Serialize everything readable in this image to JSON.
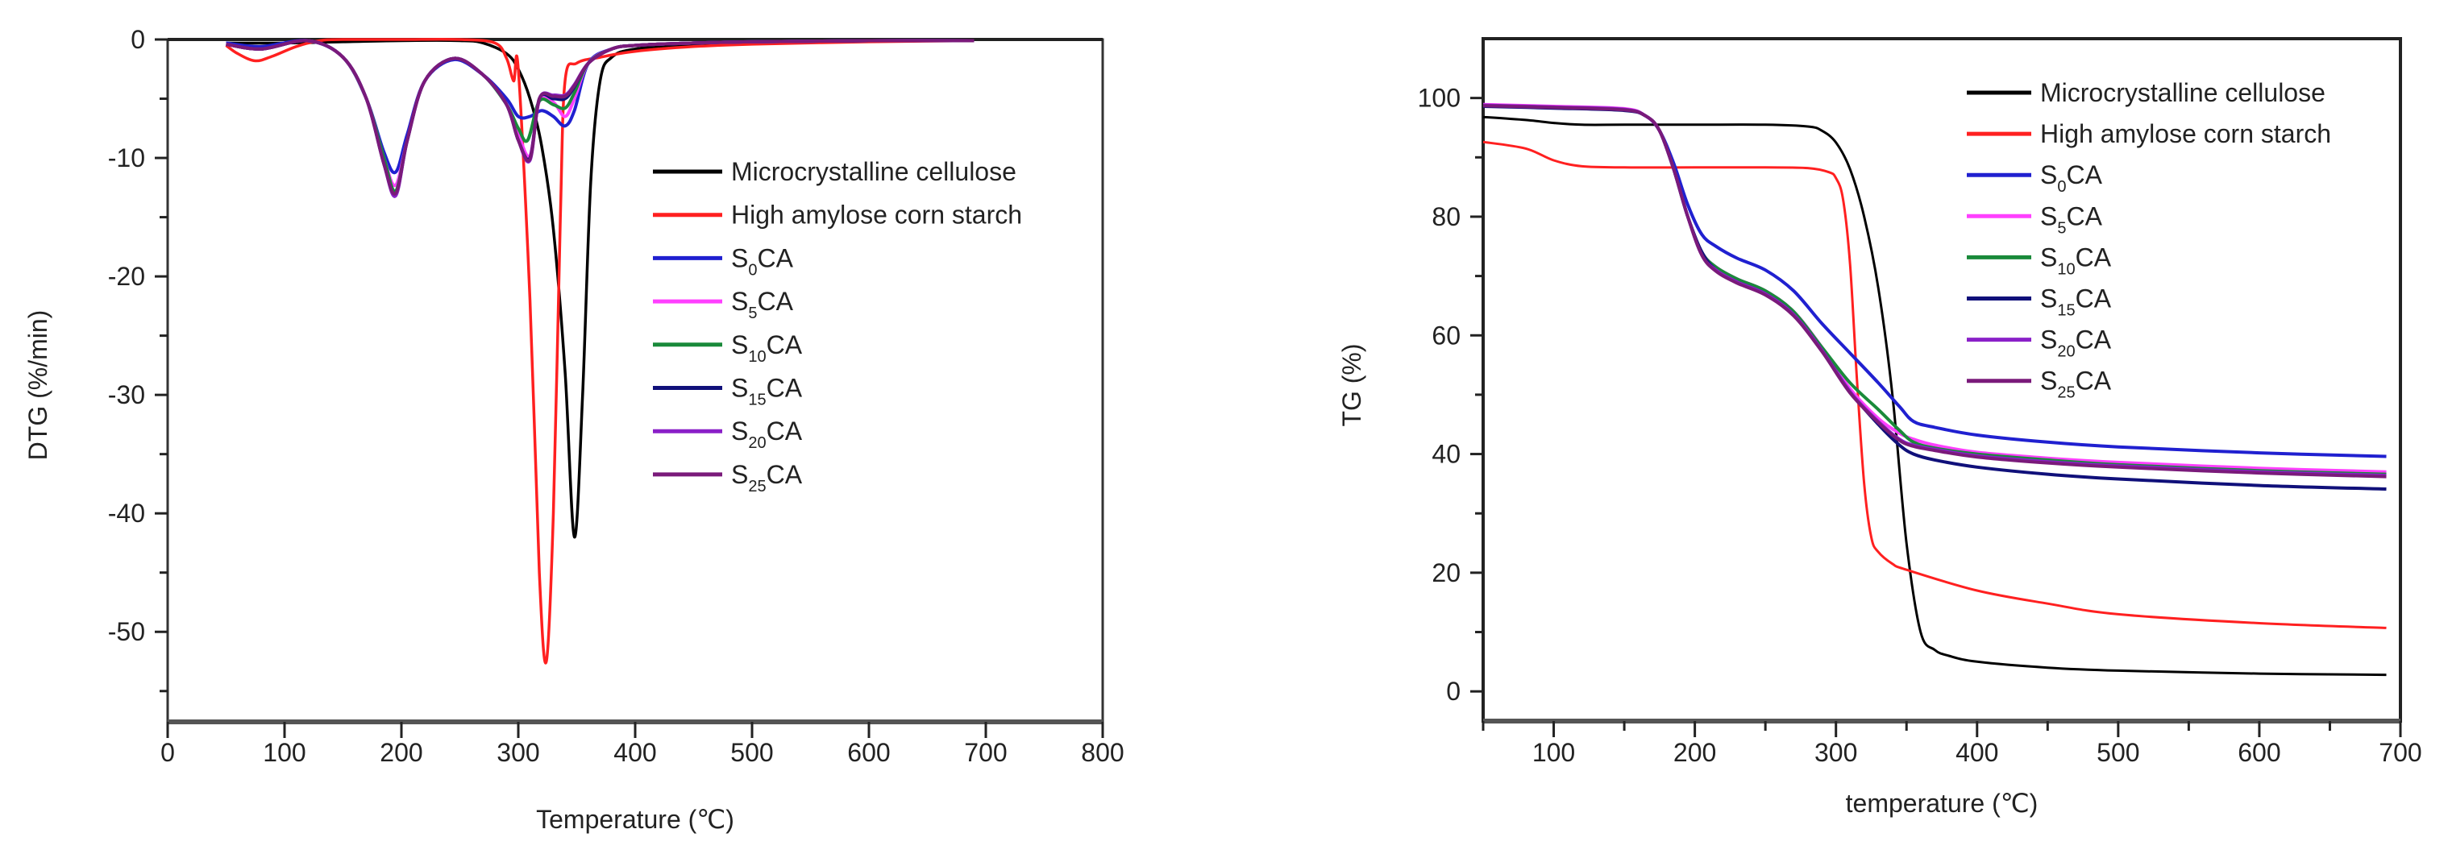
{
  "chart_data": [
    {
      "id": "dtg",
      "type": "line",
      "title": "",
      "xlabel": "Temperature (℃)",
      "ylabel": "DTG (%/min)",
      "xlim": [
        0,
        800
      ],
      "ylim": [
        -57.6,
        0
      ],
      "xticks": [
        0,
        100,
        200,
        300,
        400,
        500,
        600,
        700,
        800
      ],
      "yticks": [
        0,
        -10,
        -20,
        -30,
        -40,
        -50
      ],
      "grid": false,
      "legend_position": "right-middle",
      "series": [
        {
          "name": "Microcrystalline cellulose",
          "color": "#000000",
          "x": [
            50,
            100,
            150,
            200,
            250,
            270,
            290,
            300,
            310,
            320,
            330,
            340,
            348,
            355,
            362,
            370,
            380,
            400,
            450,
            500,
            600,
            690
          ],
          "y": [
            -0.3,
            -0.3,
            -0.2,
            -0.1,
            -0.1,
            -0.3,
            -1.2,
            -2.5,
            -5,
            -9,
            -16,
            -28,
            -42,
            -30,
            -12,
            -3.5,
            -1.5,
            -0.8,
            -0.4,
            -0.3,
            -0.1,
            -0.1
          ]
        },
        {
          "name": "High amylose corn starch",
          "color": "#ff2020",
          "x": [
            50,
            60,
            75,
            90,
            110,
            130,
            150,
            200,
            250,
            280,
            290,
            296,
            300,
            310,
            318,
            324,
            330,
            336,
            340,
            350,
            370,
            400,
            450,
            500,
            600,
            690
          ],
          "y": [
            -0.5,
            -1.2,
            -1.8,
            -1.4,
            -0.6,
            -0.1,
            0,
            0,
            0,
            -0.3,
            -1.6,
            -3.5,
            -2.5,
            -22,
            -45,
            -52.5,
            -40,
            -15,
            -3.5,
            -2,
            -1.5,
            -1.0,
            -0.6,
            -0.4,
            -0.2,
            -0.1
          ]
        },
        {
          "name": "S0CA",
          "color": "#2020d0",
          "x": [
            50,
            80,
            120,
            150,
            170,
            185,
            195,
            205,
            220,
            245,
            270,
            290,
            300,
            310,
            320,
            330,
            340,
            348,
            360,
            380,
            400,
            450,
            500,
            600,
            690
          ],
          "y": [
            -0.3,
            -0.6,
            -0.1,
            -1.5,
            -5,
            -9.5,
            -11.2,
            -8,
            -3.5,
            -1.7,
            -3,
            -5,
            -6.5,
            -6.5,
            -6,
            -6.5,
            -7.3,
            -6,
            -2,
            -0.8,
            -0.5,
            -0.3,
            -0.2,
            -0.1,
            -0.1
          ]
        },
        {
          "name": "S5CA",
          "color": "#ff40ff",
          "x": [
            50,
            80,
            120,
            150,
            170,
            185,
            195,
            205,
            220,
            245,
            270,
            290,
            300,
            310,
            318,
            330,
            340,
            348,
            360,
            380,
            400,
            450,
            500,
            600,
            690
          ],
          "y": [
            -0.4,
            -0.8,
            -0.1,
            -1.5,
            -5,
            -10,
            -12.3,
            -8.5,
            -3.5,
            -1.6,
            -3,
            -5.5,
            -8,
            -9.8,
            -5.2,
            -5.3,
            -6.5,
            -5,
            -2,
            -0.8,
            -0.5,
            -0.3,
            -0.2,
            -0.1,
            -0.1
          ]
        },
        {
          "name": "S10CA",
          "color": "#1a8a3a",
          "x": [
            50,
            80,
            120,
            150,
            170,
            185,
            195,
            205,
            220,
            245,
            270,
            290,
            300,
            308,
            318,
            330,
            340,
            348,
            360,
            380,
            400,
            450,
            500,
            600,
            690
          ],
          "y": [
            -0.4,
            -0.8,
            -0.1,
            -1.5,
            -5,
            -10,
            -12.8,
            -8.5,
            -3.5,
            -1.6,
            -3,
            -5.5,
            -7.5,
            -8.5,
            -5.2,
            -5.5,
            -5.8,
            -4.5,
            -2,
            -0.8,
            -0.5,
            -0.3,
            -0.2,
            -0.1,
            -0.1
          ]
        },
        {
          "name": "S15CA",
          "color": "#10107a",
          "x": [
            50,
            80,
            120,
            150,
            170,
            185,
            195,
            205,
            220,
            245,
            270,
            290,
            300,
            310,
            318,
            330,
            340,
            348,
            360,
            380,
            400,
            450,
            500,
            600,
            690
          ],
          "y": [
            -0.4,
            -0.8,
            -0.1,
            -1.5,
            -5,
            -10.5,
            -13.1,
            -8.5,
            -3.5,
            -1.6,
            -3,
            -5.5,
            -8.5,
            -10,
            -5,
            -5,
            -5,
            -4,
            -2,
            -0.8,
            -0.5,
            -0.3,
            -0.2,
            -0.1,
            -0.1
          ]
        },
        {
          "name": "S20CA",
          "color": "#8a20c8",
          "x": [
            50,
            80,
            120,
            150,
            170,
            185,
            195,
            205,
            220,
            245,
            270,
            290,
            300,
            310,
            318,
            330,
            340,
            348,
            360,
            380,
            400,
            450,
            500,
            600,
            690
          ],
          "y": [
            -0.4,
            -0.8,
            -0.1,
            -1.5,
            -5,
            -10.5,
            -13.2,
            -8.5,
            -3.5,
            -1.6,
            -3,
            -5.5,
            -8.5,
            -10.2,
            -5,
            -4.7,
            -4.7,
            -3.8,
            -2,
            -0.8,
            -0.5,
            -0.3,
            -0.2,
            -0.1,
            -0.1
          ]
        },
        {
          "name": "S25CA",
          "color": "#7a1a7a",
          "x": [
            50,
            80,
            120,
            150,
            170,
            185,
            195,
            205,
            220,
            245,
            270,
            290,
            300,
            310,
            318,
            330,
            340,
            348,
            360,
            380,
            400,
            450,
            500,
            600,
            690
          ],
          "y": [
            -0.4,
            -0.8,
            -0.1,
            -1.5,
            -5,
            -10.5,
            -13.0,
            -8.5,
            -3.5,
            -1.6,
            -3,
            -5.5,
            -8.5,
            -10.1,
            -5,
            -4.8,
            -4.8,
            -3.9,
            -2,
            -0.8,
            -0.5,
            -0.3,
            -0.2,
            -0.1,
            -0.1
          ]
        }
      ]
    },
    {
      "id": "tg",
      "type": "line",
      "title": "",
      "xlabel": "temperature (℃)",
      "ylabel": "TG (%)",
      "xlim": [
        50,
        700
      ],
      "ylim": [
        -5,
        110
      ],
      "xticks": [
        100,
        200,
        300,
        400,
        500,
        600,
        700
      ],
      "yticks": [
        0,
        20,
        40,
        60,
        80,
        100
      ],
      "grid": false,
      "legend_position": "upper-right",
      "series": [
        {
          "name": "Microcrystalline cellulose",
          "color": "#000000",
          "x": [
            50,
            80,
            100,
            120,
            150,
            200,
            250,
            280,
            290,
            300,
            310,
            320,
            330,
            340,
            350,
            360,
            370,
            380,
            400,
            450,
            500,
            600,
            690
          ],
          "y": [
            96.8,
            96.3,
            95.8,
            95.5,
            95.5,
            95.5,
            95.5,
            95.2,
            94.5,
            92.5,
            88,
            80,
            68,
            50,
            25,
            10,
            7,
            6,
            5,
            4,
            3.5,
            3.0,
            2.8
          ]
        },
        {
          "name": "High amylose corn starch",
          "color": "#ff2020",
          "x": [
            50,
            80,
            100,
            120,
            150,
            200,
            250,
            280,
            295,
            300,
            305,
            310,
            315,
            320,
            325,
            330,
            340,
            350,
            400,
            450,
            500,
            600,
            690
          ],
          "y": [
            92.6,
            91.5,
            89.5,
            88.5,
            88.3,
            88.3,
            88.3,
            88.2,
            87.5,
            86.5,
            83,
            72,
            52,
            35,
            26,
            23.5,
            21.5,
            20.5,
            17,
            14.8,
            13,
            11.5,
            10.7
          ]
        },
        {
          "name": "S0CA",
          "color": "#2020d0",
          "x": [
            50,
            100,
            150,
            165,
            175,
            185,
            195,
            205,
            215,
            230,
            250,
            270,
            290,
            310,
            330,
            345,
            355,
            370,
            400,
            450,
            500,
            600,
            690
          ],
          "y": [
            98.8,
            98.5,
            98,
            97,
            94.5,
            89,
            82,
            77,
            75,
            73,
            71,
            67.5,
            62,
            57,
            52,
            48,
            45.5,
            44.5,
            43.2,
            42,
            41.2,
            40.2,
            39.6
          ]
        },
        {
          "name": "S5CA",
          "color": "#ff40ff",
          "x": [
            50,
            100,
            150,
            165,
            175,
            185,
            195,
            205,
            215,
            230,
            250,
            270,
            290,
            310,
            330,
            345,
            355,
            370,
            400,
            450,
            500,
            600,
            690
          ],
          "y": [
            98.9,
            98.6,
            98.2,
            97,
            94.5,
            88,
            80,
            74,
            71.5,
            69.5,
            67.5,
            64,
            58,
            51,
            46,
            43.5,
            42.5,
            41.5,
            40.3,
            39.3,
            38.6,
            37.6,
            37.0
          ]
        },
        {
          "name": "S10CA",
          "color": "#1a8a3a",
          "x": [
            50,
            100,
            150,
            165,
            175,
            185,
            195,
            205,
            215,
            230,
            250,
            270,
            290,
            310,
            330,
            345,
            355,
            370,
            400,
            450,
            500,
            600,
            690
          ],
          "y": [
            98.7,
            98.4,
            98,
            97,
            94.5,
            88,
            80,
            74,
            71.5,
            69.5,
            67.5,
            64,
            58,
            52,
            47.5,
            44,
            42,
            41,
            40,
            39,
            38.2,
            37.2,
            36.6
          ]
        },
        {
          "name": "S15CA",
          "color": "#10107a",
          "x": [
            50,
            100,
            150,
            165,
            175,
            185,
            195,
            205,
            215,
            230,
            250,
            270,
            290,
            310,
            330,
            345,
            355,
            370,
            400,
            450,
            500,
            600,
            690
          ],
          "y": [
            98.6,
            98.3,
            97.9,
            97,
            94.5,
            88,
            80,
            74,
            71,
            69,
            67,
            63.5,
            57.5,
            50.5,
            45,
            41.5,
            40,
            39,
            37.8,
            36.6,
            35.8,
            34.7,
            34.1
          ]
        },
        {
          "name": "S20CA",
          "color": "#8a20c8",
          "x": [
            50,
            100,
            150,
            165,
            175,
            185,
            195,
            205,
            215,
            230,
            250,
            270,
            290,
            310,
            330,
            345,
            355,
            370,
            400,
            450,
            500,
            600,
            690
          ],
          "y": [
            98.8,
            98.5,
            98.1,
            97,
            94.5,
            88,
            80,
            73.5,
            71,
            69,
            67,
            63.5,
            57.5,
            50.5,
            45.5,
            42.5,
            41.5,
            40.8,
            39.7,
            38.7,
            38,
            37,
            36.4
          ]
        },
        {
          "name": "S25CA",
          "color": "#7a1a7a",
          "x": [
            50,
            100,
            150,
            165,
            175,
            185,
            195,
            205,
            215,
            230,
            250,
            270,
            290,
            310,
            330,
            345,
            355,
            370,
            400,
            450,
            500,
            600,
            690
          ],
          "y": [
            98.7,
            98.4,
            98.0,
            97,
            94.5,
            88,
            80,
            73.5,
            70.8,
            68.8,
            66.8,
            63.3,
            57.3,
            50.3,
            45.3,
            42.3,
            41.3,
            40.6,
            39.5,
            38.5,
            37.8,
            36.8,
            36.2
          ]
        }
      ]
    }
  ],
  "legend": {
    "labels": [
      {
        "main": "Microcrystalline cellulose",
        "sub": "",
        "suffix": ""
      },
      {
        "main": "High amylose corn starch",
        "sub": "",
        "suffix": ""
      },
      {
        "main": "S",
        "sub": "0",
        "suffix": "CA"
      },
      {
        "main": "S",
        "sub": "5",
        "suffix": "CA"
      },
      {
        "main": "S",
        "sub": "10",
        "suffix": "CA"
      },
      {
        "main": "S",
        "sub": "15",
        "suffix": "CA"
      },
      {
        "main": "S",
        "sub": "20",
        "suffix": "CA"
      },
      {
        "main": "S",
        "sub": "25",
        "suffix": "CA"
      }
    ]
  }
}
